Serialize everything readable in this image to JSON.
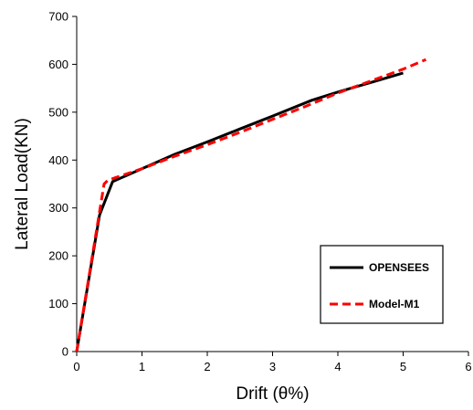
{
  "chart_data": {
    "type": "line",
    "title": "",
    "xlabel": "Drift (θ%)",
    "ylabel": "Lateral Load(KN)",
    "xlim": [
      0,
      6
    ],
    "ylim": [
      0,
      700
    ],
    "xticks": [
      "0",
      "1",
      "2",
      "3",
      "4",
      "5",
      "6"
    ],
    "yticks": [
      "0",
      "100",
      "200",
      "300",
      "400",
      "500",
      "600",
      "700"
    ],
    "grid": false,
    "legend_position": "bottom-right",
    "series": [
      {
        "name": "OPENSEES",
        "color": "#000000",
        "dash": "solid",
        "x": [
          0,
          0.35,
          0.55,
          1.0,
          1.5,
          2.0,
          2.5,
          3.0,
          3.6,
          4.0,
          4.5,
          5.0
        ],
        "y": [
          0,
          285,
          355,
          382,
          412,
          438,
          465,
          492,
          525,
          542,
          562,
          582
        ]
      },
      {
        "name": "Model-M1",
        "color": "#ff0000",
        "dash": "dashed",
        "x": [
          0,
          0.42,
          0.48,
          1.0,
          1.5,
          2.0,
          2.5,
          3.0,
          3.5,
          4.0,
          4.5,
          5.0,
          5.35
        ],
        "y": [
          0,
          350,
          358,
          382,
          408,
          432,
          458,
          485,
          512,
          540,
          565,
          590,
          610
        ]
      }
    ]
  }
}
